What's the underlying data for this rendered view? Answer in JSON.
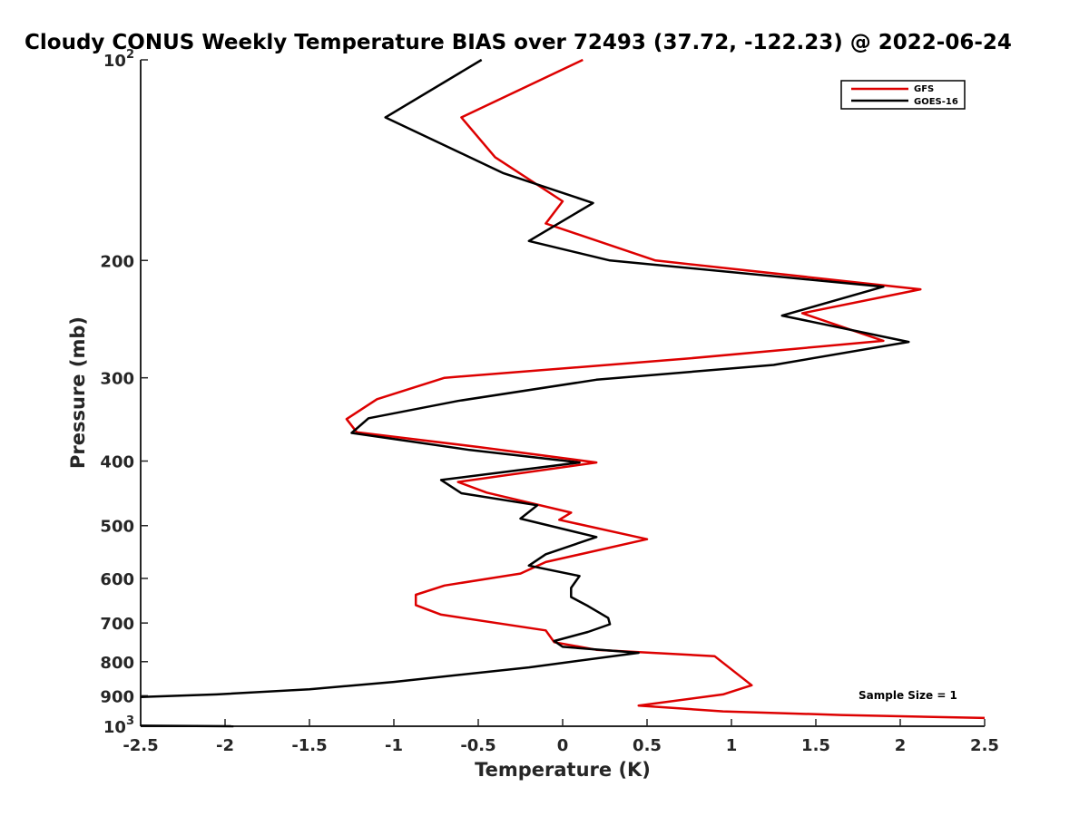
{
  "chart_data": {
    "type": "line",
    "title": "Cloudy CONUS Weekly Temperature BIAS over 72493 (37.72, -122.23) @ 2022-06-24",
    "xlabel": "Temperature (K)",
    "ylabel": "Pressure (mb)",
    "xlim": [
      -2.5,
      2.5
    ],
    "ylim": [
      100,
      1000
    ],
    "y_scale": "log",
    "y_reversed": true,
    "grid": false,
    "legend_position": "top-right",
    "x_ticks": [
      "-2.5",
      "-2",
      "-1.5",
      "-1",
      "-0.5",
      "0",
      "0.5",
      "1",
      "1.5",
      "2",
      "2.5"
    ],
    "y_ticks": [
      {
        "base": "10",
        "exp": "2"
      },
      {
        "base": "200",
        "exp": ""
      },
      {
        "base": "300",
        "exp": ""
      },
      {
        "base": "400",
        "exp": ""
      },
      {
        "base": "500",
        "exp": ""
      },
      {
        "base": "600",
        "exp": ""
      },
      {
        "base": "700",
        "exp": ""
      },
      {
        "base": "800",
        "exp": ""
      },
      {
        "base": "900",
        "exp": ""
      },
      {
        "base": "10",
        "exp": "3"
      }
    ],
    "annotation": "Sample Size = 1",
    "series": [
      {
        "name": "GFS",
        "color": "#dd0000",
        "points": [
          [
            0.12,
            100
          ],
          [
            -0.6,
            122
          ],
          [
            -0.4,
            140
          ],
          [
            0.0,
            163
          ],
          [
            -0.1,
            176
          ],
          [
            0.55,
            200
          ],
          [
            2.12,
            221
          ],
          [
            1.42,
            240
          ],
          [
            1.9,
            264
          ],
          [
            0.72,
            281
          ],
          [
            -0.7,
            300
          ],
          [
            -1.1,
            323
          ],
          [
            -1.28,
            346
          ],
          [
            -1.22,
            362
          ],
          [
            -0.5,
            381
          ],
          [
            0.2,
            402
          ],
          [
            -0.62,
            430
          ],
          [
            -0.45,
            446
          ],
          [
            0.05,
            478
          ],
          [
            -0.02,
            490
          ],
          [
            0.5,
            524
          ],
          [
            -0.1,
            567
          ],
          [
            -0.25,
            590
          ],
          [
            -0.7,
            615
          ],
          [
            -0.87,
            635
          ],
          [
            -0.87,
            658
          ],
          [
            -0.72,
            680
          ],
          [
            -0.1,
            718
          ],
          [
            -0.08,
            730
          ],
          [
            -0.05,
            748
          ],
          [
            0.2,
            768
          ],
          [
            0.9,
            785
          ],
          [
            1.12,
            868
          ],
          [
            0.95,
            896
          ],
          [
            0.45,
            931
          ],
          [
            0.95,
            950
          ],
          [
            1.65,
            962
          ],
          [
            2.5,
            972
          ]
        ]
      },
      {
        "name": "GOES-16",
        "color": "#000000",
        "points": [
          [
            -0.48,
            100
          ],
          [
            -1.05,
            122
          ],
          [
            -0.35,
            148
          ],
          [
            0.18,
            164
          ],
          [
            -0.2,
            187
          ],
          [
            0.28,
            200
          ],
          [
            1.9,
            219
          ],
          [
            1.3,
            242
          ],
          [
            2.05,
            265
          ],
          [
            1.25,
            287
          ],
          [
            0.2,
            302
          ],
          [
            -0.62,
            325
          ],
          [
            -1.15,
            345
          ],
          [
            -1.25,
            363
          ],
          [
            -0.55,
            385
          ],
          [
            0.1,
            402
          ],
          [
            -0.72,
            427
          ],
          [
            -0.6,
            447
          ],
          [
            -0.15,
            466
          ],
          [
            -0.25,
            488
          ],
          [
            0.2,
            520
          ],
          [
            -0.1,
            552
          ],
          [
            -0.2,
            574
          ],
          [
            0.1,
            595
          ],
          [
            0.05,
            620
          ],
          [
            0.05,
            640
          ],
          [
            0.15,
            660
          ],
          [
            0.27,
            688
          ],
          [
            0.28,
            703
          ],
          [
            0.15,
            722
          ],
          [
            -0.05,
            745
          ],
          [
            0.0,
            760
          ],
          [
            0.45,
            776
          ],
          [
            -0.2,
            816
          ],
          [
            -1.0,
            858
          ],
          [
            -1.5,
            880
          ],
          [
            -2.05,
            896
          ],
          [
            -2.5,
            904
          ]
        ]
      }
    ],
    "extra_segment": {
      "series": "GOES-16",
      "points": [
        [
          -2.5,
          998
        ],
        [
          -1.95,
          1000
        ]
      ]
    }
  }
}
